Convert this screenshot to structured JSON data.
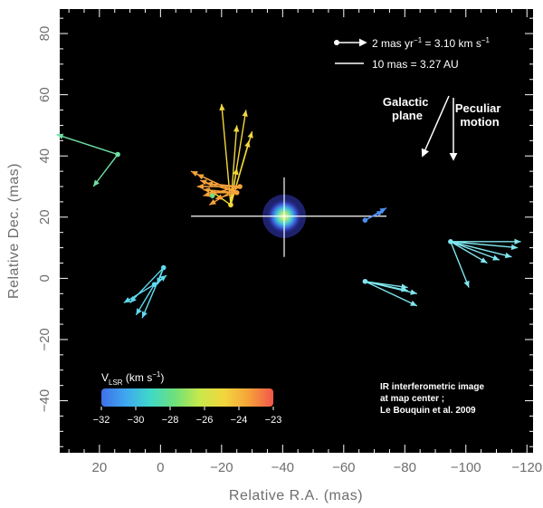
{
  "chart_data": {
    "type": "scatter",
    "xlabel": "Relative R.A. (mas)",
    "ylabel": "Relative Dec. (mas)",
    "xlim": [
      33,
      -122
    ],
    "ylim": [
      -57,
      88
    ],
    "x_ticks": [
      20,
      0,
      -20,
      -40,
      -60,
      -80,
      -100,
      -120
    ],
    "y_ticks": [
      -40,
      -20,
      0,
      20,
      40,
      60,
      80
    ],
    "x_tick_labels": [
      "20",
      "0",
      "−20",
      "−40",
      "−60",
      "−80",
      "−100",
      "−120"
    ],
    "y_tick_labels": [
      "−40",
      "−20",
      "0",
      "20",
      "40",
      "60",
      "80"
    ],
    "background": "#000000",
    "grid": false,
    "center_image": {
      "x": -40.5,
      "y": 20.3,
      "label_line1": "IR interferometric image",
      "label_line2": "at map center ;",
      "label_line3": "Le Bouquin et al. 2009"
    },
    "center_cross": {
      "x_range": [
        -10,
        -74
      ],
      "y_range": [
        7,
        33
      ]
    },
    "scale_bar": {
      "arrow_text": "2 mas yr",
      "arrow_exp": "−1",
      "arrow_text2": " = 3.10 km s",
      "arrow_exp2": "−1",
      "line_text": "10 mas = 3.27 AU"
    },
    "directions": [
      {
        "label_line1": "Galactic",
        "label_line2": "plane"
      },
      {
        "label_line1": "Peculiar",
        "label_line2": "motion"
      }
    ],
    "colorbar": {
      "title": "V",
      "title_sub": "LSR",
      "title_unit": " (km s",
      "title_unit_exp": "−1",
      "title_close": ")",
      "tick_labels": [
        "−32",
        "−30",
        "−28",
        "−26",
        "−24",
        "−23"
      ],
      "colors": [
        "#3f6fe8",
        "#3fa8ef",
        "#3fd9c9",
        "#6fe07a",
        "#c8e84b",
        "#f2d63d",
        "#f6a23a",
        "#f2564a"
      ]
    },
    "features": [
      {
        "x": 14,
        "y": 40.5,
        "color": "#6fe0a4",
        "motions": [
          [
            34,
            47
          ],
          [
            22,
            30
          ]
        ]
      },
      {
        "x": -1,
        "y": 3.5,
        "color": "#5fd9ef",
        "motions": [
          [
            1,
            -2
          ],
          [
            10,
            -8
          ],
          [
            6,
            -13
          ]
        ]
      },
      {
        "x": 2,
        "y": -2,
        "color": "#5fd9ef",
        "motions": [
          [
            -2,
            1
          ],
          [
            12,
            -8
          ],
          [
            8,
            -12
          ]
        ]
      },
      {
        "x": -23,
        "y": 24,
        "color": "#f2d63d",
        "motions": [
          [
            -20,
            57
          ],
          [
            -25,
            50
          ],
          [
            -28,
            55
          ],
          [
            -30,
            48
          ],
          [
            -29,
            45
          ],
          [
            -25,
            36
          ],
          [
            -16,
            29
          ]
        ]
      },
      {
        "x": -25,
        "y": 28,
        "color": "#f6a23a",
        "motions": [
          [
            -10,
            35
          ],
          [
            -12,
            34
          ],
          [
            -13,
            32
          ],
          [
            -14,
            29
          ],
          [
            -16,
            28
          ],
          [
            -18,
            26
          ]
        ]
      },
      {
        "x": -26,
        "y": 30,
        "color": "#f6a23a",
        "motions": [
          [
            -12,
            30
          ],
          [
            -14,
            27
          ],
          [
            -15,
            31
          ],
          [
            -16,
            24
          ]
        ]
      },
      {
        "x": -17,
        "y": 27,
        "color": "#6fe07a",
        "motions": []
      },
      {
        "x": -67,
        "y": 19,
        "color": "#4b8ef0",
        "motions": [
          [
            -73,
            22
          ],
          [
            -74,
            23
          ]
        ]
      },
      {
        "x": -67,
        "y": -1,
        "color": "#7fe6ef",
        "motions": [
          [
            -81,
            -4
          ],
          [
            -84,
            -5
          ],
          [
            -81,
            -3
          ],
          [
            -84,
            -9
          ]
        ]
      },
      {
        "x": -95,
        "y": 12,
        "color": "#7fe6ef",
        "motions": [
          [
            -117,
            10
          ],
          [
            -118,
            12
          ],
          [
            -115,
            7
          ],
          [
            -101,
            -3
          ],
          [
            -107,
            5
          ],
          [
            -111,
            6
          ]
        ]
      }
    ]
  }
}
